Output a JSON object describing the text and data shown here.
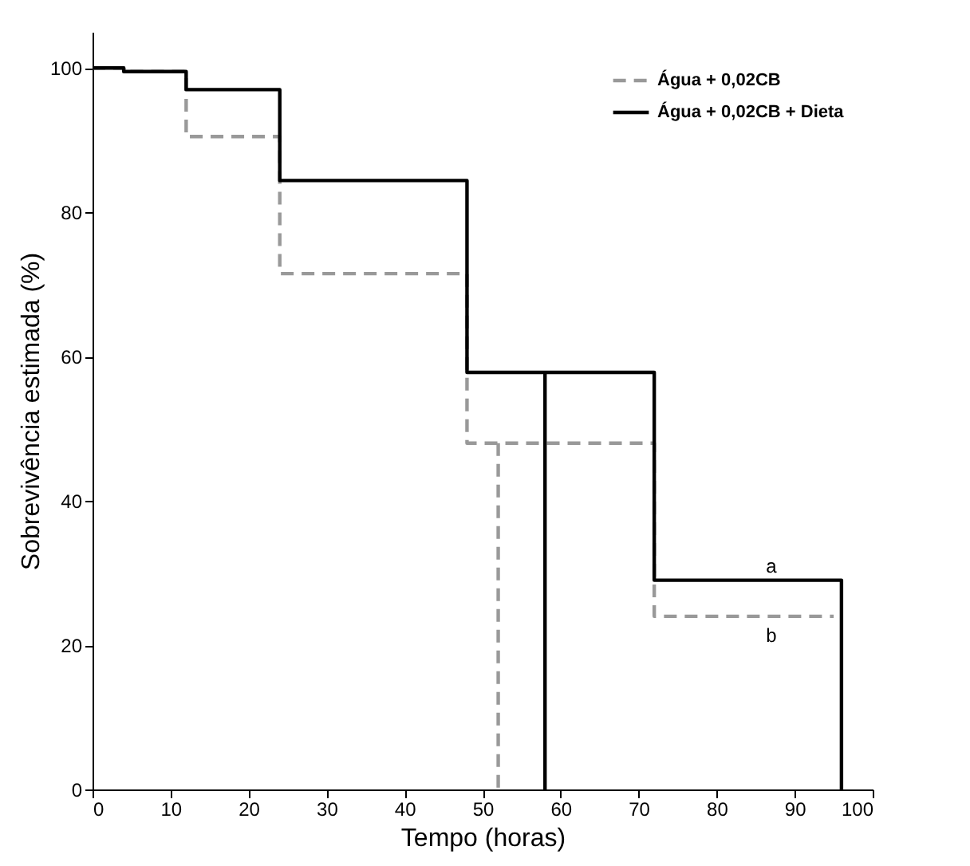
{
  "chart_data": {
    "type": "step",
    "xlabel": "Tempo (horas)",
    "ylabel": "Sobrevivência estimada (%)",
    "xlim": [
      0,
      100
    ],
    "xticks": [
      0,
      10,
      20,
      30,
      40,
      50,
      60,
      70,
      80,
      90,
      100
    ],
    "ylim": [
      0,
      105
    ],
    "yticks": [
      0,
      20,
      40,
      60,
      80,
      100
    ],
    "grid": false,
    "legend": "top right",
    "series": [
      {
        "name": "Água + 0,02CB",
        "color": "#999999",
        "line_style": "dashed",
        "x": [
          0,
          4,
          12,
          24,
          48,
          72,
          95
        ],
        "values": [
          100,
          99.5,
          90.5,
          71.5,
          48,
          24,
          24
        ]
      },
      {
        "name": "Água + 0,02CB + Dieta",
        "color": "#000000",
        "line_style": "solid",
        "x": [
          0,
          4,
          12,
          24,
          48,
          72,
          96,
          96
        ],
        "values": [
          100,
          99.5,
          97,
          84.4,
          57.8,
          29,
          29,
          0
        ]
      },
      {
        "type": "line",
        "color": "#999999",
        "line_style": "dashed",
        "x": [
          52,
          52
        ],
        "values": [
          48,
          0
        ]
      },
      {
        "type": "line",
        "color": "#000000",
        "line_style": "solid",
        "x": [
          58,
          58
        ],
        "values": [
          57.8,
          0
        ]
      }
    ],
    "annotations": [
      {
        "text": "a",
        "x": 87,
        "y": 29
      },
      {
        "text": "b",
        "x": 87,
        "y": 24
      }
    ]
  }
}
